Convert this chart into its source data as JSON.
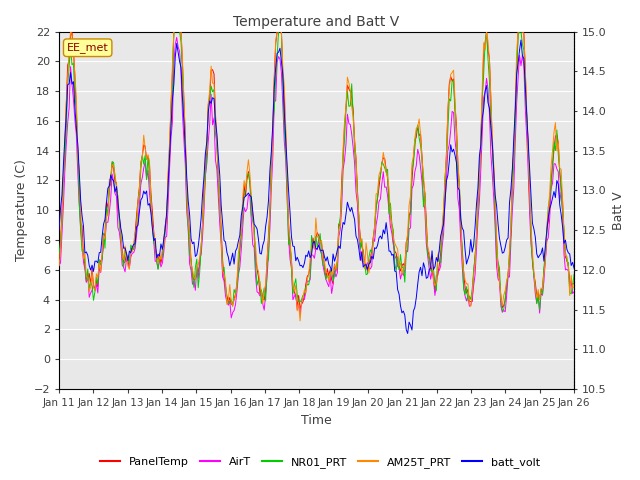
{
  "title": "Temperature and Batt V",
  "xlabel": "Time",
  "ylabel_left": "Temperature (C)",
  "ylabel_right": "Batt V",
  "annotation": "EE_met",
  "xlim_labels": [
    "Jan 11",
    "Jan 12",
    "Jan 13",
    "Jan 14",
    "Jan 15",
    "Jan 16",
    "Jan 17",
    "Jan 18",
    "Jan 19",
    "Jan 20",
    "Jan 21",
    "Jan 22",
    "Jan 23",
    "Jan 24",
    "Jan 25",
    "Jan 26"
  ],
  "ylim_left": [
    -2,
    22
  ],
  "ylim_right": [
    10.5,
    15.0
  ],
  "yticks_left": [
    -2,
    0,
    2,
    4,
    6,
    8,
    10,
    12,
    14,
    16,
    18,
    20,
    22
  ],
  "yticks_right": [
    10.5,
    11.0,
    11.5,
    12.0,
    12.5,
    13.0,
    13.5,
    14.0,
    14.5,
    15.0
  ],
  "series_colors": {
    "PanelTemp": "#ff0000",
    "AirT": "#ff00ff",
    "NR01_PRT": "#00cc00",
    "AM25T_PRT": "#ff8800",
    "batt_volt": "#0000ff"
  },
  "legend_entries": [
    "PanelTemp",
    "AirT",
    "NR01_PRT",
    "AM25T_PRT",
    "batt_volt"
  ],
  "plot_bg": "#ffffff",
  "axes_bg": "#e8e8e8",
  "grid_color": "#ffffff",
  "title_color": "#404040",
  "label_color": "#404040",
  "annotation_text_color": "#8b0000",
  "annotation_bg": "#ffff99",
  "annotation_edge": "#cc8800"
}
